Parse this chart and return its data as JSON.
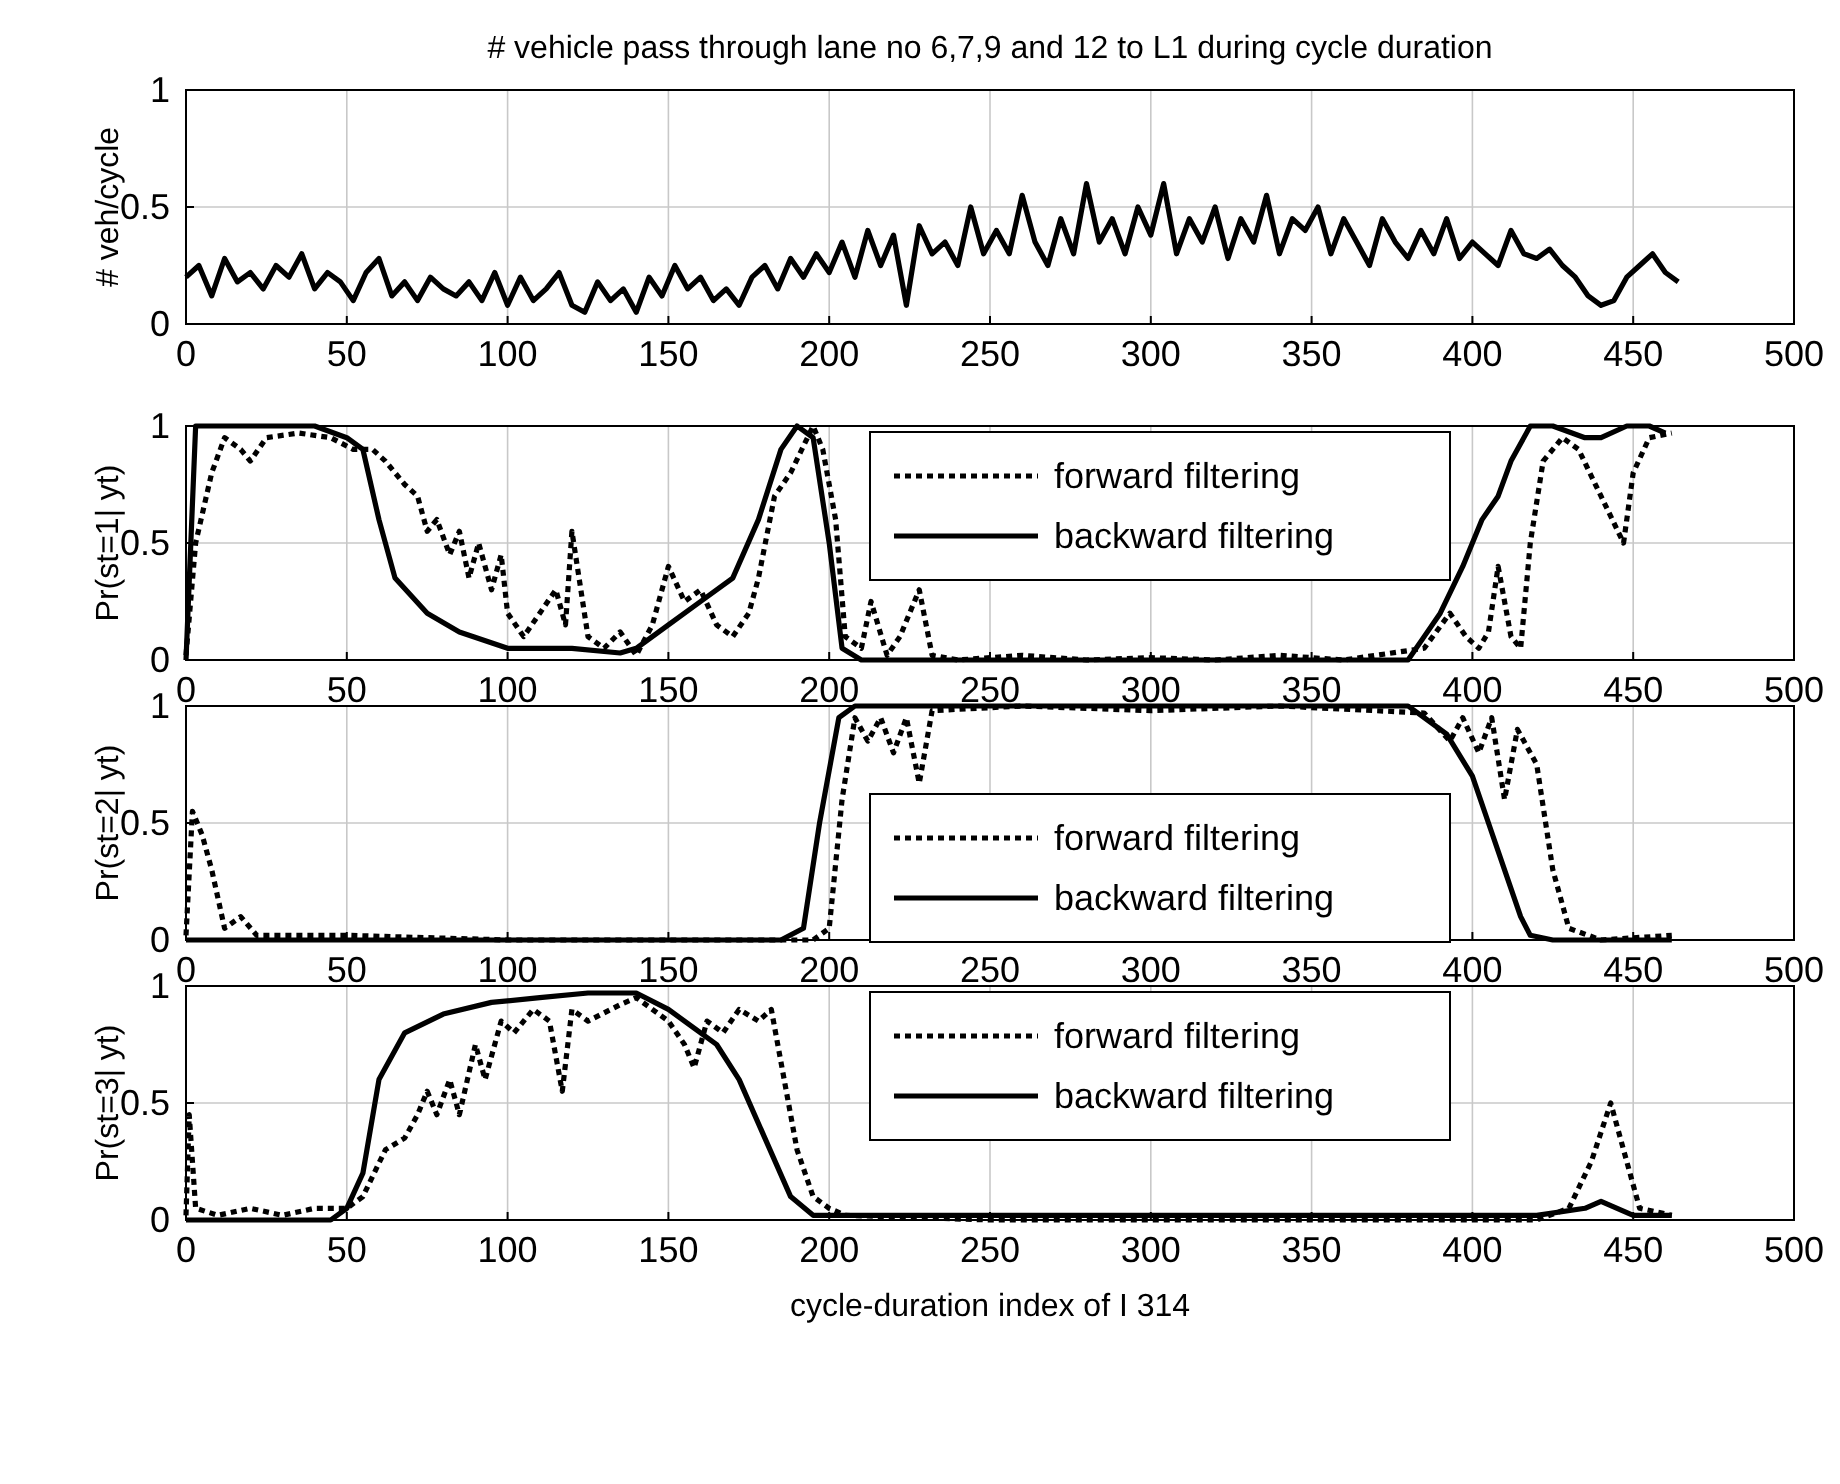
{
  "chart_data": [
    {
      "type": "line",
      "title": "# vehicle pass through lane no 6,7,9 and 12 to L1 during cycle duration",
      "ylabel": "# veh/cycle",
      "xlim": [
        0,
        500
      ],
      "xticks": [
        0,
        50,
        100,
        150,
        200,
        250,
        300,
        350,
        400,
        450,
        500
      ],
      "ylim": [
        0,
        1
      ],
      "yticks": [
        0,
        0.5,
        1
      ],
      "grid": true,
      "line_style": "solid",
      "series": [
        {
          "color": "#000000",
          "x": [
            0,
            4,
            8,
            12,
            16,
            20,
            24,
            28,
            32,
            36,
            40,
            44,
            48,
            52,
            56,
            60,
            64,
            68,
            72,
            76,
            80,
            84,
            88,
            92,
            96,
            100,
            104,
            108,
            112,
            116,
            120,
            124,
            128,
            132,
            136,
            140,
            144,
            148,
            152,
            156,
            160,
            164,
            168,
            172,
            176,
            180,
            184,
            188,
            192,
            196,
            200,
            204,
            208,
            212,
            216,
            220,
            224,
            228,
            232,
            236,
            240,
            244,
            248,
            252,
            256,
            260,
            264,
            268,
            272,
            276,
            280,
            284,
            288,
            292,
            296,
            300,
            304,
            308,
            312,
            316,
            320,
            324,
            328,
            332,
            336,
            340,
            344,
            348,
            352,
            356,
            360,
            364,
            368,
            372,
            376,
            380,
            384,
            388,
            392,
            396,
            400,
            404,
            408,
            412,
            416,
            420,
            424,
            428,
            432,
            436,
            440,
            444,
            448,
            452,
            456,
            460,
            464
          ],
          "values": [
            0.2,
            0.25,
            0.12,
            0.28,
            0.18,
            0.22,
            0.15,
            0.25,
            0.2,
            0.3,
            0.15,
            0.22,
            0.18,
            0.1,
            0.22,
            0.28,
            0.12,
            0.18,
            0.1,
            0.2,
            0.15,
            0.12,
            0.18,
            0.1,
            0.22,
            0.08,
            0.2,
            0.1,
            0.15,
            0.22,
            0.08,
            0.05,
            0.18,
            0.1,
            0.15,
            0.05,
            0.2,
            0.12,
            0.25,
            0.15,
            0.2,
            0.1,
            0.15,
            0.08,
            0.2,
            0.25,
            0.15,
            0.28,
            0.2,
            0.3,
            0.22,
            0.35,
            0.2,
            0.4,
            0.25,
            0.38,
            0.08,
            0.42,
            0.3,
            0.35,
            0.25,
            0.5,
            0.3,
            0.4,
            0.3,
            0.55,
            0.35,
            0.25,
            0.45,
            0.3,
            0.6,
            0.35,
            0.45,
            0.3,
            0.5,
            0.38,
            0.6,
            0.3,
            0.45,
            0.35,
            0.5,
            0.28,
            0.45,
            0.35,
            0.55,
            0.3,
            0.45,
            0.4,
            0.5,
            0.3,
            0.45,
            0.35,
            0.25,
            0.45,
            0.35,
            0.28,
            0.4,
            0.3,
            0.45,
            0.28,
            0.35,
            0.3,
            0.25,
            0.4,
            0.3,
            0.28,
            0.32,
            0.25,
            0.2,
            0.12,
            0.08,
            0.1,
            0.2,
            0.25,
            0.3,
            0.22,
            0.18
          ]
        }
      ]
    },
    {
      "type": "line",
      "ylabel": "Pr(st=1| yt)",
      "xlim": [
        0,
        500
      ],
      "xticks": [
        0,
        50,
        100,
        150,
        200,
        250,
        300,
        350,
        400,
        450,
        500
      ],
      "ylim": [
        0,
        1
      ],
      "yticks": [
        0,
        0.5,
        1
      ],
      "grid": true,
      "legend": "top right",
      "series": [
        {
          "name": "forward filtering",
          "color": "#000000",
          "line_style": "dotted",
          "x": [
            0,
            3,
            8,
            12,
            17,
            20,
            25,
            35,
            45,
            52,
            58,
            62,
            68,
            72,
            75,
            78,
            82,
            85,
            88,
            91,
            95,
            98,
            100,
            105,
            110,
            115,
            118,
            120,
            125,
            130,
            135,
            140,
            145,
            150,
            155,
            160,
            165,
            170,
            175,
            178,
            183,
            188,
            195,
            198,
            202,
            205,
            210,
            213,
            218,
            222,
            228,
            232,
            240,
            260,
            280,
            300,
            320,
            340,
            360,
            370,
            385,
            393,
            398,
            402,
            405,
            408,
            412,
            415,
            418,
            422,
            428,
            433,
            440,
            447,
            450,
            455,
            462
          ],
          "values": [
            0.02,
            0.5,
            0.8,
            0.95,
            0.9,
            0.85,
            0.95,
            0.97,
            0.95,
            0.9,
            0.9,
            0.85,
            0.75,
            0.7,
            0.55,
            0.6,
            0.45,
            0.55,
            0.35,
            0.5,
            0.3,
            0.45,
            0.2,
            0.1,
            0.2,
            0.3,
            0.15,
            0.55,
            0.1,
            0.05,
            0.12,
            0.02,
            0.15,
            0.4,
            0.25,
            0.3,
            0.15,
            0.1,
            0.2,
            0.35,
            0.7,
            0.8,
            1,
            0.9,
            0.6,
            0.1,
            0.05,
            0.25,
            0.02,
            0.1,
            0.3,
            0.02,
            0,
            0.02,
            0,
            0.01,
            0,
            0.02,
            0,
            0.02,
            0.05,
            0.2,
            0.1,
            0.05,
            0.12,
            0.4,
            0.1,
            0.05,
            0.5,
            0.85,
            0.95,
            0.9,
            0.7,
            0.5,
            0.8,
            0.95,
            0.97
          ]
        },
        {
          "name": "backward filtering",
          "color": "#000000",
          "line_style": "solid",
          "x": [
            0,
            3,
            40,
            50,
            55,
            60,
            65,
            75,
            85,
            100,
            120,
            135,
            140,
            150,
            160,
            170,
            178,
            185,
            190,
            195,
            200,
            204,
            210,
            380,
            385,
            390,
            397,
            403,
            408,
            412,
            418,
            425,
            435,
            440,
            448,
            455,
            460
          ],
          "values": [
            0,
            1,
            1,
            0.95,
            0.9,
            0.6,
            0.35,
            0.2,
            0.12,
            0.05,
            0.05,
            0.03,
            0.05,
            0.15,
            0.25,
            0.35,
            0.6,
            0.9,
            1,
            0.95,
            0.5,
            0.05,
            0,
            0,
            0.1,
            0.2,
            0.4,
            0.6,
            0.7,
            0.85,
            1,
            1,
            0.95,
            0.95,
            1,
            1,
            0.97
          ]
        }
      ]
    },
    {
      "type": "line",
      "ylabel": "Pr(st=2| yt)",
      "xlim": [
        0,
        500
      ],
      "xticks": [
        0,
        50,
        100,
        150,
        200,
        250,
        300,
        350,
        400,
        450,
        500
      ],
      "ylim": [
        0,
        1
      ],
      "yticks": [
        0,
        0.5,
        1
      ],
      "grid": true,
      "legend": "bottom right",
      "series": [
        {
          "name": "forward filtering",
          "color": "#000000",
          "line_style": "dotted",
          "x": [
            0,
            2,
            5,
            8,
            12,
            17,
            22,
            50,
            100,
            150,
            195,
            200,
            204,
            208,
            212,
            216,
            220,
            224,
            228,
            232,
            260,
            300,
            340,
            385,
            393,
            397,
            402,
            406,
            410,
            414,
            420,
            425,
            430,
            440,
            462
          ],
          "values": [
            0.02,
            0.55,
            0.45,
            0.3,
            0.05,
            0.1,
            0.02,
            0.02,
            0,
            0,
            0,
            0.05,
            0.6,
            0.95,
            0.85,
            0.95,
            0.8,
            0.95,
            0.67,
            0.98,
            1,
            0.98,
            1,
            0.97,
            0.85,
            0.95,
            0.8,
            0.95,
            0.6,
            0.9,
            0.75,
            0.3,
            0.05,
            0,
            0.02
          ]
        },
        {
          "name": "backward filtering",
          "color": "#000000",
          "line_style": "solid",
          "x": [
            0,
            185,
            192,
            197,
            203,
            208,
            380,
            385,
            392,
            400,
            405,
            410,
            415,
            418,
            425,
            462
          ],
          "values": [
            0,
            0,
            0.05,
            0.5,
            0.95,
            1,
            1,
            0.95,
            0.88,
            0.7,
            0.5,
            0.3,
            0.1,
            0.02,
            0,
            0
          ]
        }
      ]
    },
    {
      "type": "line",
      "ylabel": "Pr(st=3| yt)",
      "xlabel": "cycle-duration index of I 314",
      "xlim": [
        0,
        500
      ],
      "xticks": [
        0,
        50,
        100,
        150,
        200,
        250,
        300,
        350,
        400,
        450,
        500
      ],
      "ylim": [
        0,
        1
      ],
      "yticks": [
        0,
        0.5,
        1
      ],
      "grid": true,
      "legend": "top right",
      "series": [
        {
          "name": "forward filtering",
          "color": "#000000",
          "line_style": "dotted",
          "x": [
            0,
            1,
            3,
            10,
            20,
            30,
            40,
            50,
            55,
            62,
            68,
            72,
            75,
            78,
            82,
            85,
            90,
            93,
            98,
            102,
            108,
            113,
            117,
            120,
            125,
            135,
            140,
            150,
            155,
            158,
            162,
            167,
            172,
            178,
            182,
            186,
            190,
            195,
            200,
            205,
            250,
            300,
            350,
            420,
            430,
            437,
            443,
            447,
            452,
            462
          ],
          "values": [
            0.02,
            0.45,
            0.05,
            0.02,
            0.05,
            0.02,
            0.05,
            0.05,
            0.1,
            0.3,
            0.35,
            0.45,
            0.55,
            0.45,
            0.6,
            0.45,
            0.75,
            0.6,
            0.85,
            0.8,
            0.9,
            0.85,
            0.55,
            0.9,
            0.85,
            0.92,
            0.95,
            0.85,
            0.75,
            0.65,
            0.85,
            0.8,
            0.9,
            0.85,
            0.9,
            0.6,
            0.3,
            0.1,
            0.05,
            0.02,
            0,
            0,
            0,
            0,
            0.05,
            0.25,
            0.5,
            0.3,
            0.05,
            0.02
          ]
        },
        {
          "name": "backward filtering",
          "color": "#000000",
          "line_style": "solid",
          "x": [
            0,
            45,
            50,
            55,
            60,
            68,
            80,
            95,
            110,
            125,
            140,
            150,
            158,
            165,
            172,
            180,
            188,
            195,
            420,
            435,
            440,
            445,
            450,
            462
          ],
          "values": [
            0,
            0,
            0.05,
            0.2,
            0.6,
            0.8,
            0.88,
            0.93,
            0.95,
            0.97,
            0.97,
            0.9,
            0.82,
            0.75,
            0.6,
            0.35,
            0.1,
            0.02,
            0.02,
            0.05,
            0.08,
            0.05,
            0.02,
            0.02
          ]
        }
      ]
    }
  ]
}
